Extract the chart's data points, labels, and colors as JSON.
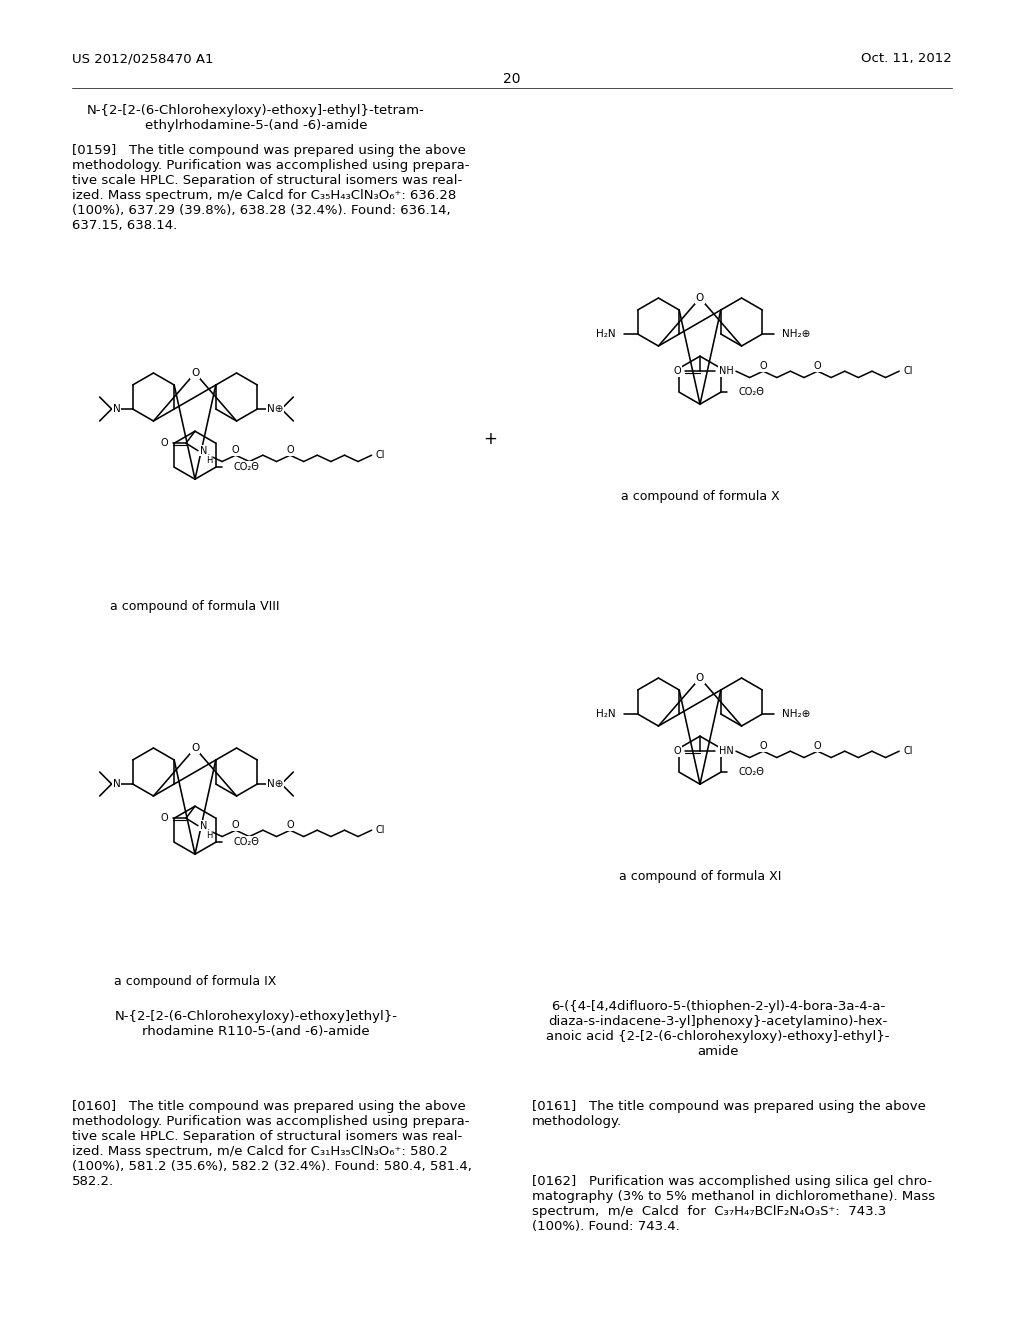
{
  "background_color": "#ffffff",
  "page_header_left": "US 2012/0258470 A1",
  "page_header_right": "Oct. 11, 2012",
  "page_number": "20",
  "label_VIII": "a compound of formula VIII",
  "label_X": "a compound of formula X",
  "label_IX": "a compound of formula IX",
  "label_XI": "a compound of formula XI",
  "font_size_header": 9.5,
  "font_size_title": 9.5,
  "font_size_body": 9.5,
  "font_size_label": 9.0
}
